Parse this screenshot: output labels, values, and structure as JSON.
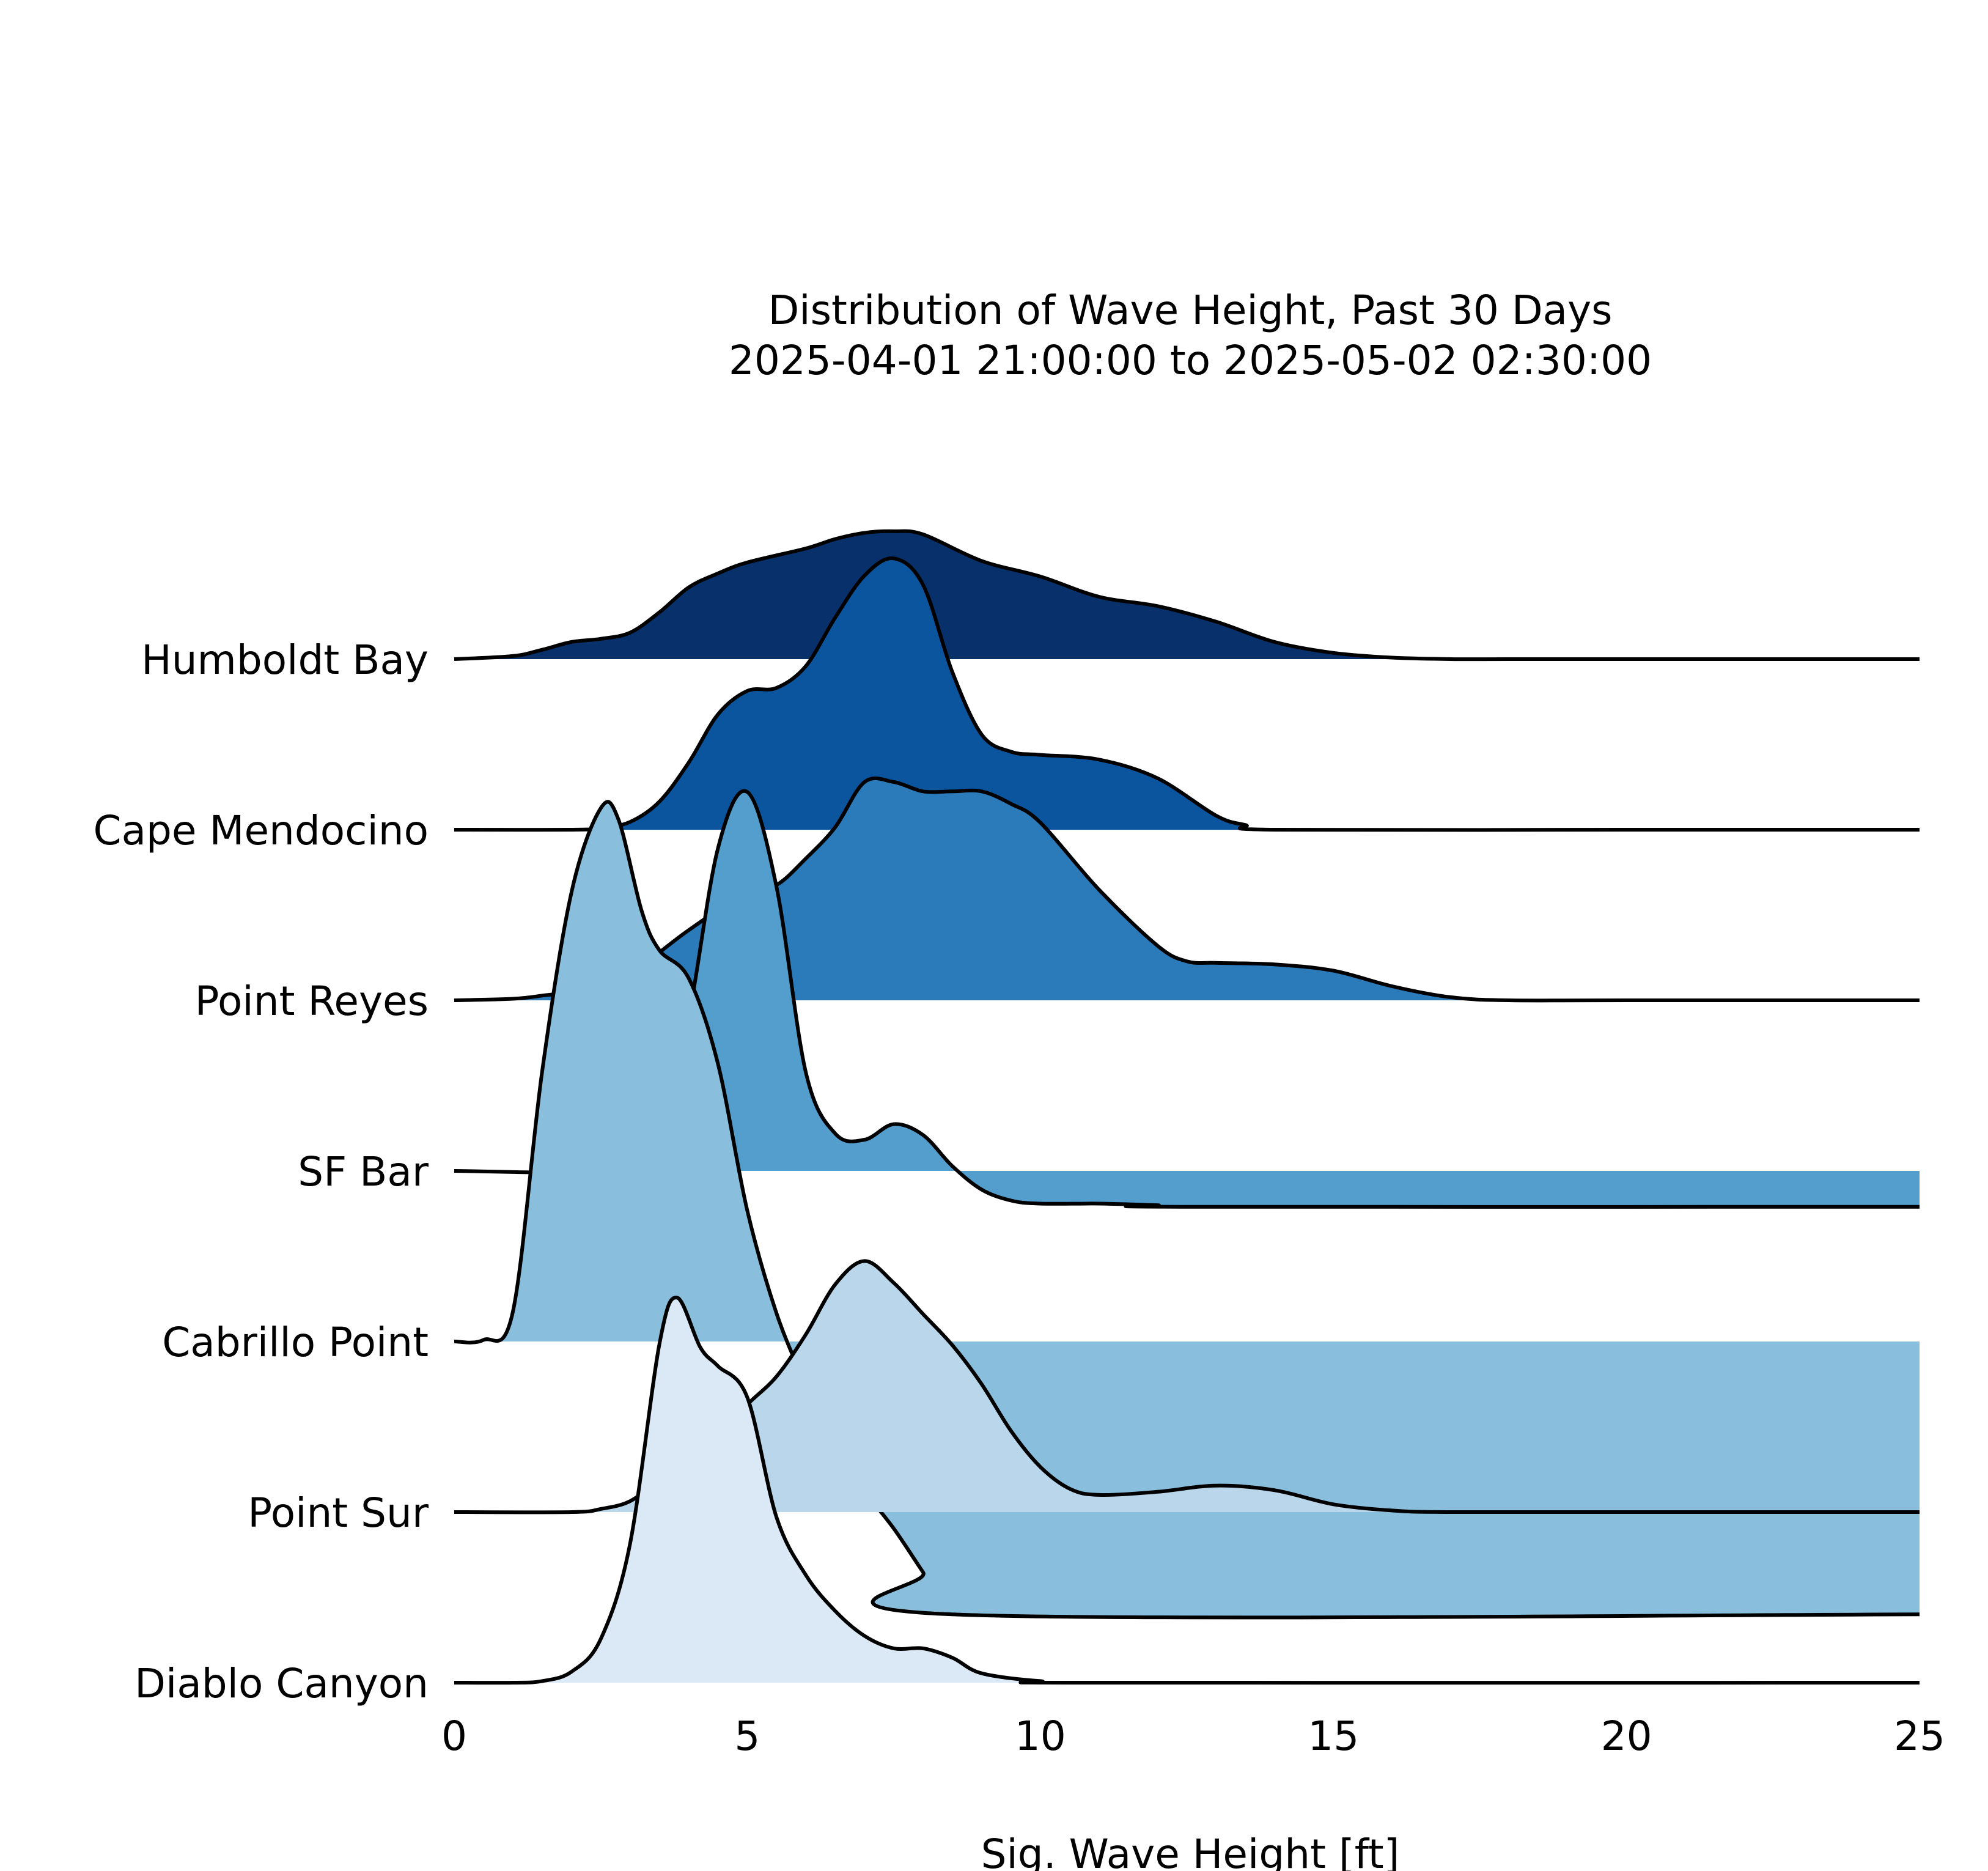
{
  "chart_data": {
    "type": "area",
    "subtype": "ridgeline",
    "title": "Distribution of Wave Height, Past 30 Days",
    "subtitle": "2025-04-01 21:00:00 to 2025-05-02 02:30:00",
    "xlabel": "Sig. Wave Height [ft]",
    "ylabel": "",
    "xlim": [
      0,
      25
    ],
    "xticks": [
      "0",
      "5",
      "10",
      "15",
      "20",
      "25"
    ],
    "grid": false,
    "legend": "none",
    "series": [
      {
        "name": "Humboldt Bay",
        "color": "#08306b",
        "x": [
          0,
          1,
          1.5,
          2,
          2.5,
          3,
          3.5,
          4,
          4.5,
          5,
          6,
          6.5,
          7,
          7.5,
          8,
          9,
          10,
          11,
          12,
          13,
          14,
          15,
          16,
          17,
          18,
          20,
          25
        ],
        "y": [
          0.0,
          0.02,
          0.06,
          0.11,
          0.13,
          0.17,
          0.3,
          0.46,
          0.55,
          0.62,
          0.71,
          0.77,
          0.81,
          0.82,
          0.8,
          0.63,
          0.53,
          0.4,
          0.34,
          0.24,
          0.11,
          0.04,
          0.01,
          0.0,
          0.0,
          0.0,
          0.0
        ]
      },
      {
        "name": "Cape Mendocino",
        "color": "#0b559f",
        "x": [
          0,
          2,
          2.5,
          3,
          3.5,
          4,
          4.5,
          5,
          5.5,
          6,
          6.5,
          7,
          7.5,
          8,
          8.5,
          9,
          9.5,
          10,
          11,
          12,
          13,
          13.5,
          14,
          20,
          25
        ],
        "y": [
          0.0,
          0.0,
          0.01,
          0.05,
          0.18,
          0.43,
          0.74,
          0.89,
          0.91,
          1.05,
          1.36,
          1.63,
          1.74,
          1.57,
          1.01,
          0.61,
          0.5,
          0.48,
          0.45,
          0.33,
          0.09,
          0.03,
          0.0,
          0.0,
          0.0
        ]
      },
      {
        "name": "Point Reyes",
        "color": "#2b7bba",
        "x": [
          0,
          1,
          1.5,
          2,
          3,
          4,
          5,
          5.5,
          6,
          6.5,
          7,
          7.5,
          8,
          8.5,
          9,
          9.5,
          10,
          11,
          12,
          12.5,
          13,
          14,
          15,
          16,
          17,
          18,
          20,
          25
        ],
        "y": [
          0.0,
          0.01,
          0.03,
          0.06,
          0.18,
          0.45,
          0.7,
          0.74,
          0.91,
          1.11,
          1.4,
          1.4,
          1.34,
          1.34,
          1.34,
          1.26,
          1.14,
          0.71,
          0.35,
          0.25,
          0.24,
          0.23,
          0.19,
          0.09,
          0.02,
          0.0,
          0.0,
          0.0
        ]
      },
      {
        "name": "SF Bar",
        "color": "#539ecd",
        "x": [
          0,
          3,
          3.5,
          4,
          4.5,
          5,
          5.5,
          6,
          6.5,
          7,
          7.5,
          8,
          8.5,
          9,
          9.5,
          10,
          11,
          12,
          12.5,
          25
        ],
        "y": [
          0.0,
          0.0,
          0.17,
          0.98,
          2.07,
          2.43,
          1.82,
          0.63,
          0.24,
          0.2,
          0.3,
          0.23,
          0.03,
          -0.12,
          -0.19,
          -0.21,
          -0.21,
          -0.22,
          -0.23,
          -0.23
        ]
      },
      {
        "name": "Cabrillo Point",
        "color": "#89bedc",
        "x": [
          0,
          0.5,
          1,
          1.5,
          2,
          2.5,
          2.8,
          3.2,
          3.5,
          4,
          4.5,
          5,
          5.5,
          6,
          6.5,
          7,
          7.5,
          8,
          8.5,
          25
        ],
        "y": [
          0.0,
          0.01,
          0.19,
          1.73,
          2.88,
          3.42,
          3.35,
          2.76,
          2.51,
          2.33,
          1.78,
          0.84,
          0.18,
          -0.28,
          -0.69,
          -0.96,
          -1.2,
          -1.48,
          -1.75,
          -1.75
        ]
      },
      {
        "name": "Point Sur",
        "color": "#bad6eb",
        "x": [
          0,
          2,
          2.5,
          3,
          3.5,
          4,
          4.5,
          5,
          5.5,
          6,
          6.5,
          7,
          7.5,
          8,
          8.5,
          9,
          9.5,
          10,
          10.5,
          11,
          12,
          13,
          14,
          15,
          16,
          17,
          20,
          25
        ],
        "y": [
          0.0,
          0.0,
          0.02,
          0.07,
          0.21,
          0.37,
          0.49,
          0.69,
          0.87,
          1.14,
          1.46,
          1.61,
          1.47,
          1.27,
          1.07,
          0.82,
          0.52,
          0.29,
          0.15,
          0.11,
          0.13,
          0.17,
          0.14,
          0.05,
          0.01,
          0.0,
          0.0,
          0.0
        ]
      },
      {
        "name": "Diablo Canyon",
        "color": "#dbe9f6",
        "x": [
          0,
          1,
          1.5,
          2,
          2.5,
          3,
          3.5,
          3.8,
          4.2,
          4.5,
          5,
          5.5,
          6,
          6.5,
          7,
          7.5,
          8,
          8.5,
          9,
          10,
          11,
          25
        ],
        "y": [
          0.0,
          0.0,
          0.01,
          0.07,
          0.28,
          0.89,
          2.17,
          2.47,
          2.15,
          2.03,
          1.83,
          1.06,
          0.69,
          0.46,
          0.3,
          0.22,
          0.22,
          0.16,
          0.06,
          0.01,
          0.0,
          0.0
        ]
      }
    ]
  }
}
